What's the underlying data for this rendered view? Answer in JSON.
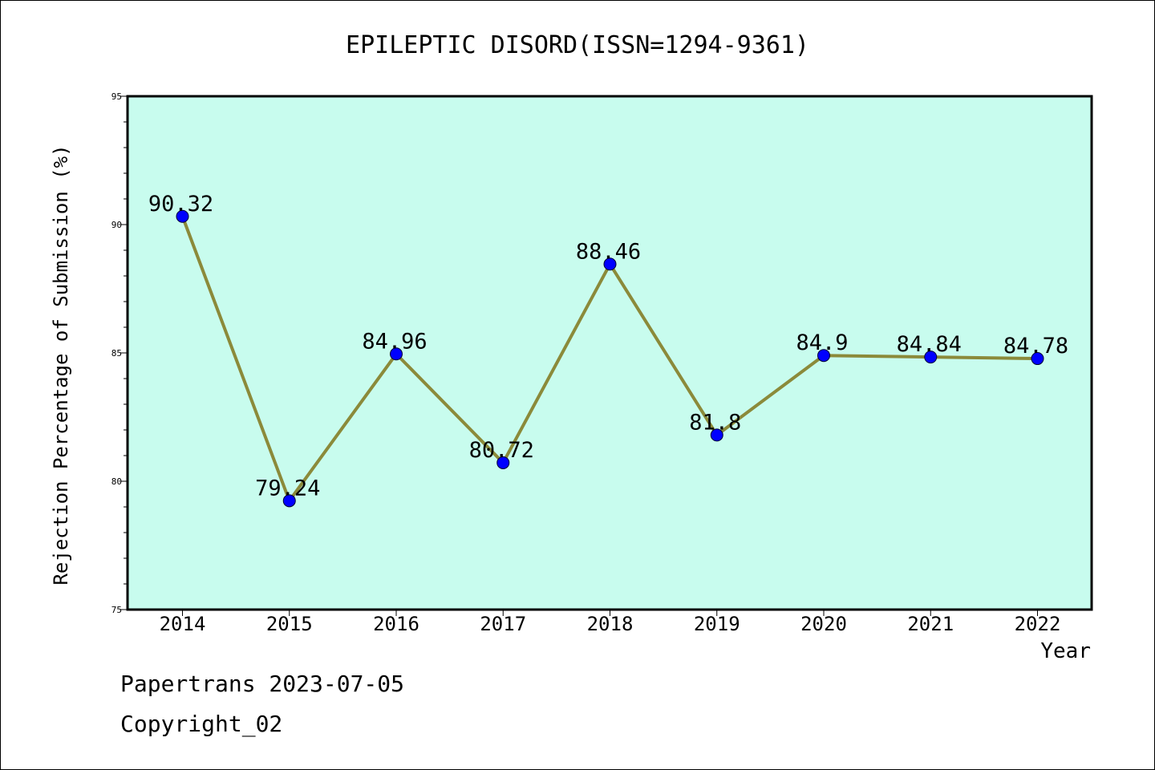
{
  "chart_data": {
    "type": "line",
    "title": "EPILEPTIC DISORD(ISSN=1294-9361)",
    "xlabel": "Year",
    "ylabel": "Rejection Percentage of Submission (%)",
    "categories": [
      "2014",
      "2015",
      "2016",
      "2017",
      "2018",
      "2019",
      "2020",
      "2021",
      "2022"
    ],
    "series": [
      {
        "values": [
          90.32,
          79.24,
          84.96,
          80.72,
          88.46,
          81.8,
          84.9,
          84.84,
          84.78
        ],
        "labels": [
          "90.32",
          "79.24",
          "84.96",
          "80.72",
          "88.46",
          "81.8",
          "84.9",
          "84.84",
          "84.78"
        ]
      }
    ],
    "ylim": [
      75,
      95
    ],
    "yticks": [
      "75",
      "80",
      "85",
      "90",
      "95"
    ],
    "grid": false,
    "colors": {
      "plot_background": "#c8fcee",
      "line": "#8b8a3a",
      "marker": "#0000ff"
    }
  },
  "footer": {
    "line1": "Papertrans 2023-07-05",
    "line2": "Copyright_02"
  }
}
